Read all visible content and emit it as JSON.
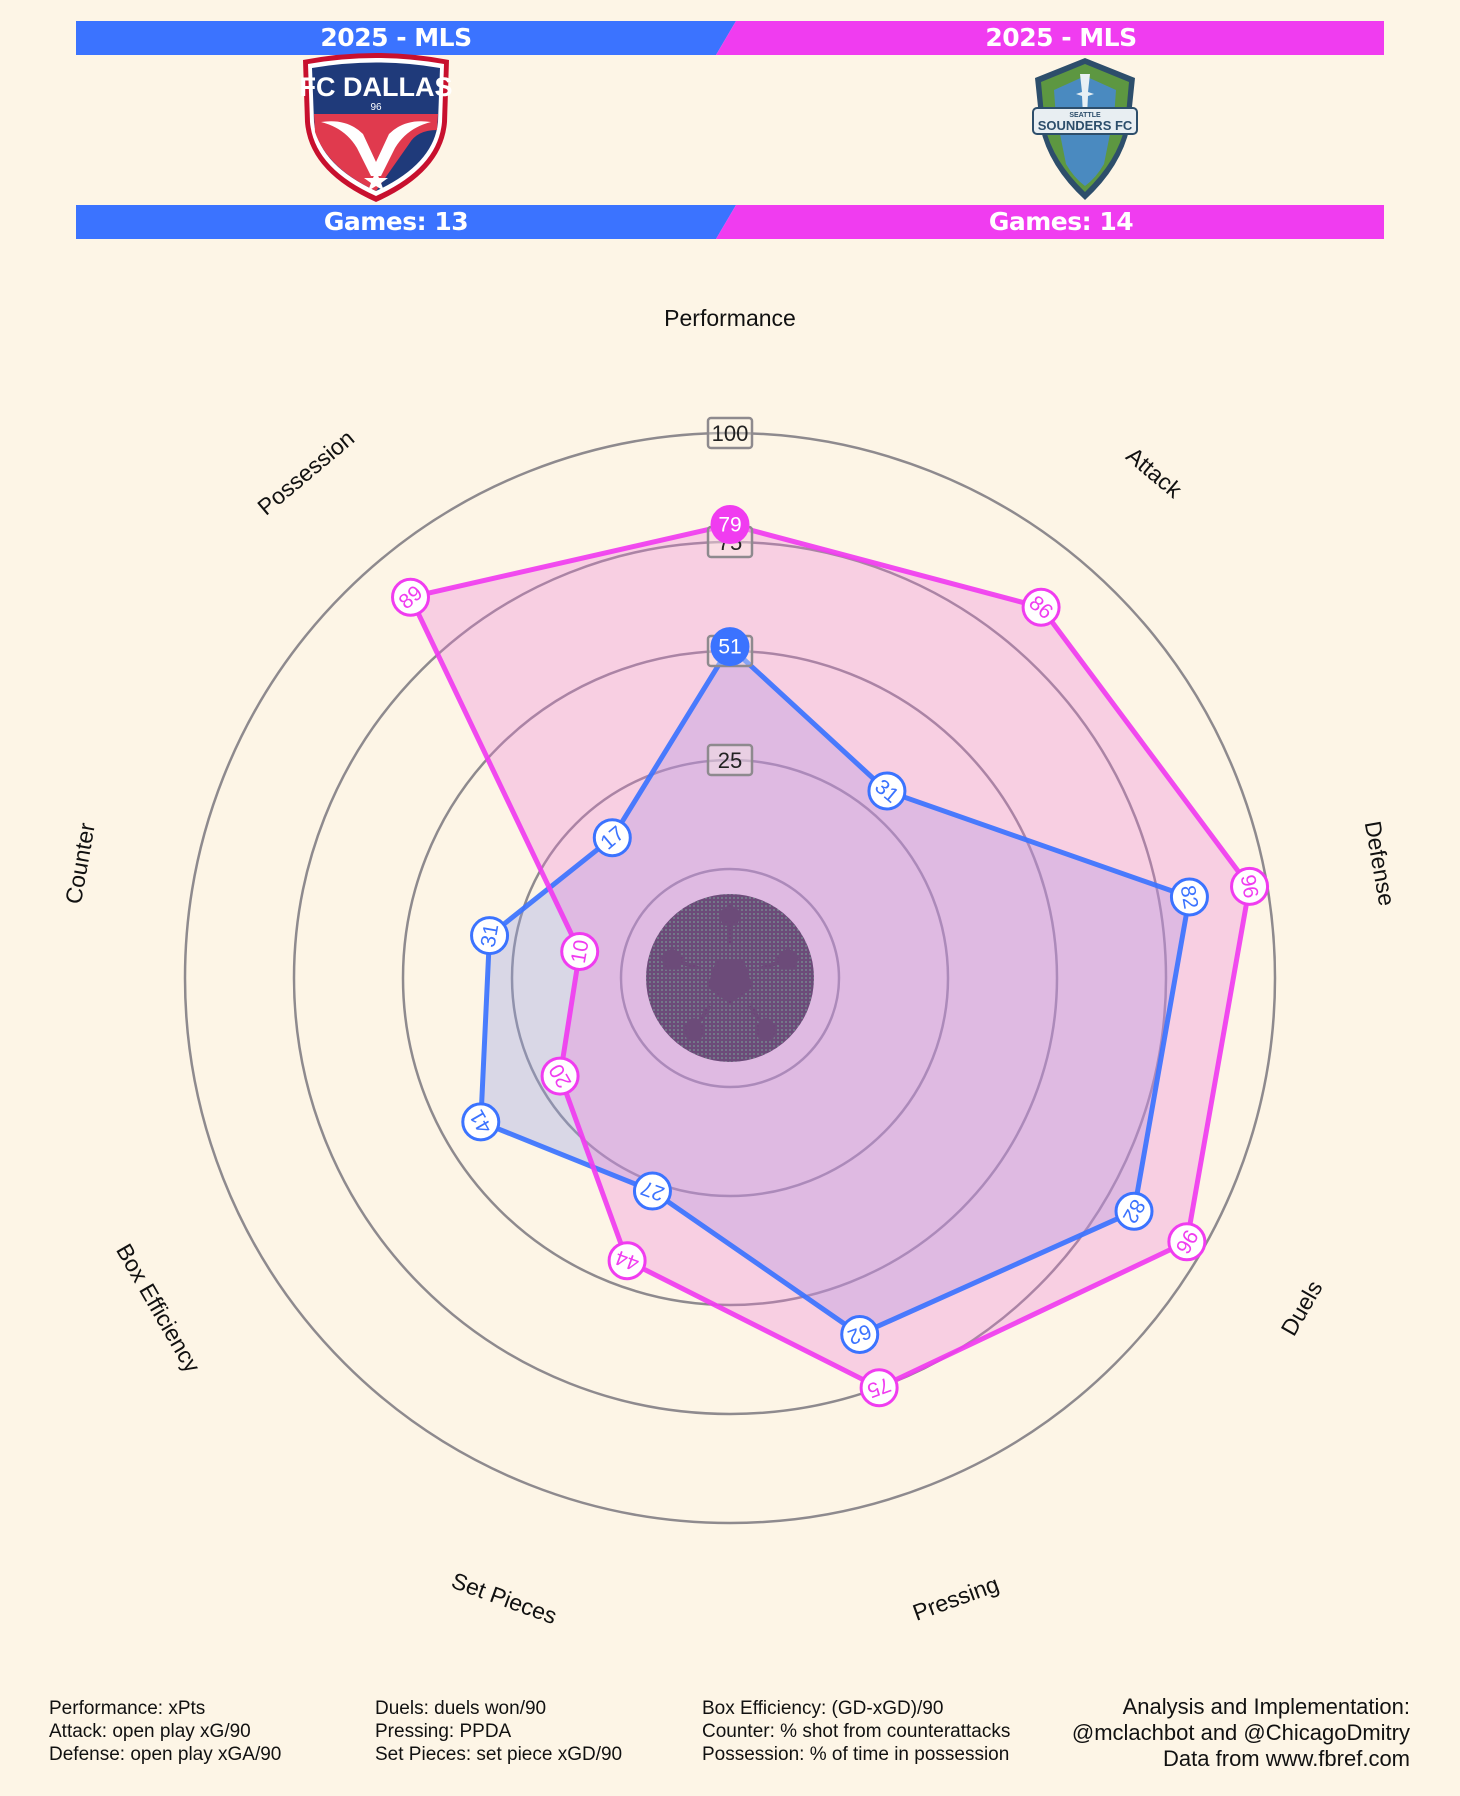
{
  "header": {
    "left_season": "2025 - MLS",
    "right_season": "2025 - MLS",
    "left_games": "Games: 13",
    "right_games": "Games: 14",
    "left_crest_text": "FC DALLAS",
    "left_crest_subtext": "96",
    "right_crest_text": "SOUNDERS FC",
    "right_crest_subtext": "SEATTLE",
    "left_color": "#3b73ff",
    "right_color": "#f03cf0"
  },
  "chart_data": {
    "type": "radar",
    "axes": [
      "Performance",
      "Attack",
      "Defense",
      "Duels",
      "Pressing",
      "Set Pieces",
      "Box Efficiency",
      "Counter",
      "Possession"
    ],
    "rlim": [
      0,
      100
    ],
    "ring_labels": [
      "25",
      "50",
      "75",
      "100"
    ],
    "series": [
      {
        "color": "#3b73ff",
        "fill": "rgba(150,160,230,0.35)",
        "values": [
          51,
          31,
          82,
          82,
          62,
          27,
          41,
          31,
          17
        ]
      },
      {
        "color": "#f03cf0",
        "fill": "rgba(240,120,220,0.30)",
        "values": [
          79,
          86,
          96,
          96,
          75,
          44,
          20,
          10,
          89
        ]
      }
    ]
  },
  "footer": {
    "col1": [
      "Performance: xPts",
      "Attack: open play xG/90",
      "Defense: open play xGA/90"
    ],
    "col2": [
      "Duels: duels won/90",
      "Pressing: PPDA",
      "Set Pieces: set piece xGD/90"
    ],
    "col3": [
      "Box Efficiency: (GD-xGD)/90",
      "Counter: % shot from counterattacks",
      "Possession: % of time in possession"
    ],
    "credits": [
      "Analysis and Implementation:",
      "@mclachbot and @ChicagoDmitry",
      "Data from www.fbref.com"
    ]
  }
}
